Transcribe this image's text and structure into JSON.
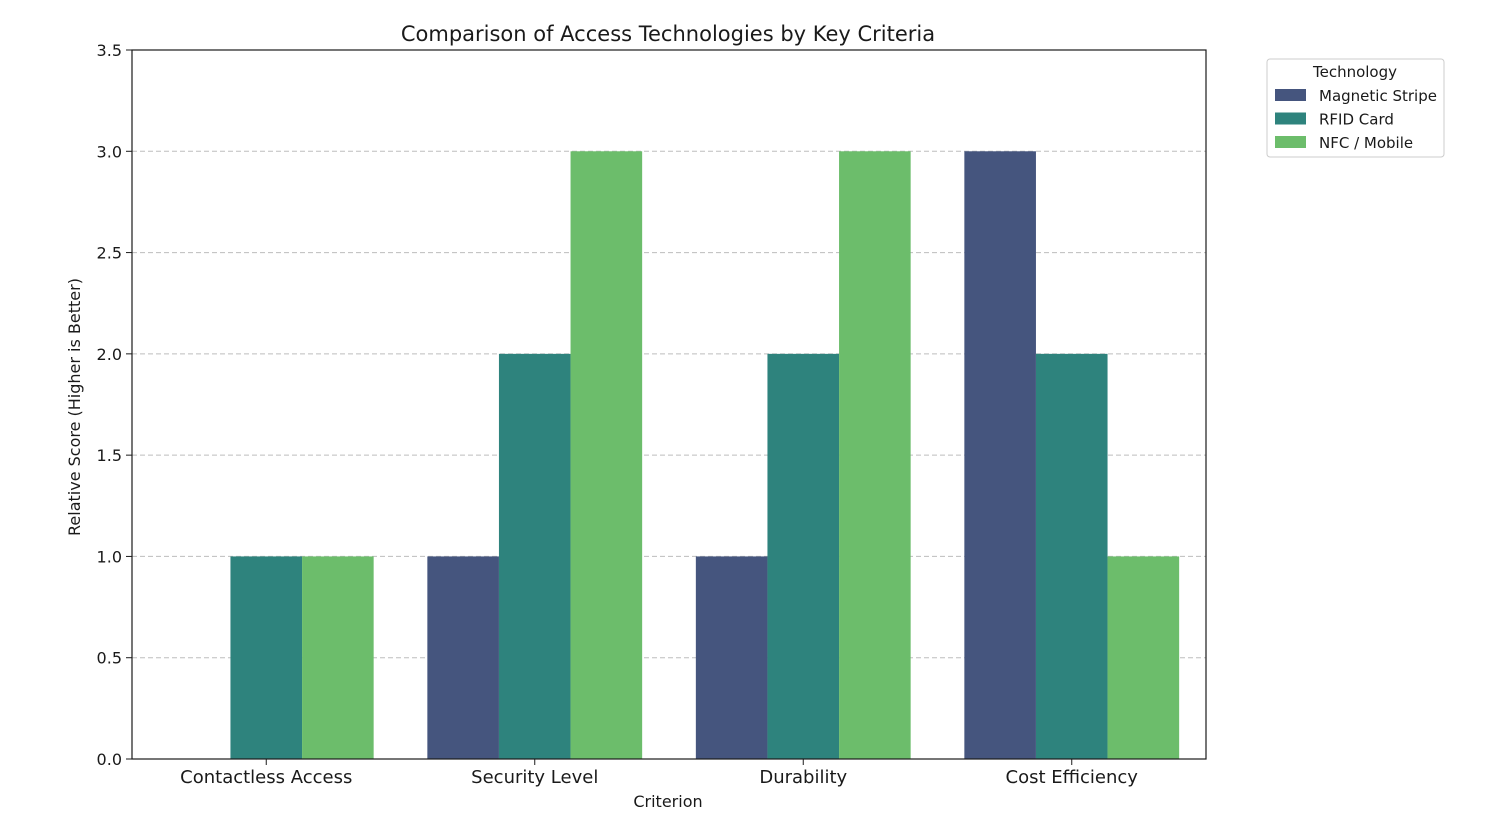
{
  "chart_data": {
    "type": "bar",
    "title": "Comparison of Access Technologies by Key Criteria",
    "xlabel": "Criterion",
    "ylabel": "Relative Score (Higher is Better)",
    "categories": [
      "Contactless Access",
      "Security Level",
      "Durability",
      "Cost Efficiency"
    ],
    "series": [
      {
        "name": "Magnetic Stripe",
        "color": "#45557e",
        "values": [
          0,
          1,
          1,
          3
        ]
      },
      {
        "name": "RFID Card",
        "color": "#2e837d",
        "values": [
          1,
          2,
          2,
          2
        ]
      },
      {
        "name": "NFC / Mobile",
        "color": "#6cbd6b",
        "values": [
          1,
          3,
          3,
          1
        ]
      }
    ],
    "ylim": [
      0,
      3.5
    ],
    "yticks": [
      "0.0",
      "0.5",
      "1.0",
      "1.5",
      "2.0",
      "2.5",
      "3.0",
      "3.5"
    ],
    "grid": "y, dashed",
    "legend": {
      "title": "Technology",
      "placement": "outside top-right"
    }
  }
}
